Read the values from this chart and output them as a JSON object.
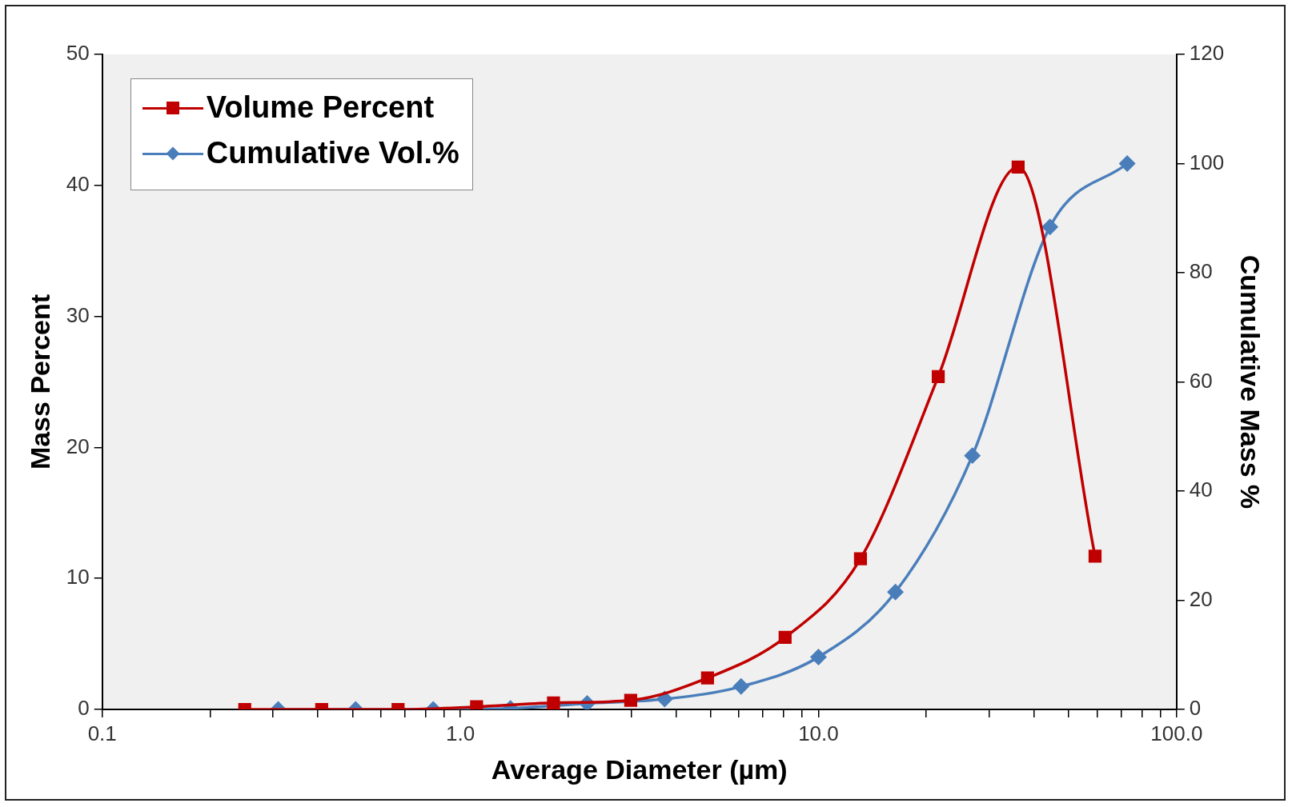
{
  "chart_data": {
    "type": "line",
    "xlabel": "Average Diameter (µm)",
    "ylabel": "Mass Percent",
    "y2label": "Cumulative Mass %",
    "log": "x",
    "xlim": [
      0.1,
      100
    ],
    "xticks": [
      0.1,
      {
        "value": 0.2,
        "label": null
      },
      {
        "value": 0.3,
        "label": null
      },
      {
        "value": 0.4,
        "label": null
      },
      {
        "value": 0.5,
        "label": null
      },
      {
        "value": 0.6,
        "label": null
      },
      {
        "value": 0.7,
        "label": null
      },
      {
        "value": 0.8,
        "label": null
      },
      {
        "value": 0.9,
        "label": null
      },
      {
        "value": 1,
        "label": "1.0"
      },
      {
        "value": 2,
        "label": null
      },
      {
        "value": 3,
        "label": null
      },
      {
        "value": 4,
        "label": null
      },
      {
        "value": 5,
        "label": null
      },
      {
        "value": 6,
        "label": null
      },
      {
        "value": 7,
        "label": null
      },
      {
        "value": 8,
        "label": null
      },
      {
        "value": 9,
        "label": null
      },
      {
        "value": 10,
        "label": "10.0"
      },
      {
        "value": 20,
        "label": null
      },
      {
        "value": 30,
        "label": null
      },
      {
        "value": 40,
        "label": null
      },
      {
        "value": 50,
        "label": null
      },
      {
        "value": 60,
        "label": null
      },
      {
        "value": 70,
        "label": null
      },
      {
        "value": 80,
        "label": null
      },
      {
        "value": 90,
        "label": null
      },
      {
        "value": 100,
        "label": "100.0"
      }
    ],
    "ylim": [
      0,
      50
    ],
    "yticks": [
      0,
      10,
      20,
      30,
      40,
      50
    ],
    "y2lim": [
      0,
      120
    ],
    "y2ticks": [
      0,
      20,
      40,
      60,
      80,
      100,
      120
    ],
    "grid": false,
    "legend": "top left",
    "series": [
      {
        "name": "Volume Percent",
        "color": "#c00000",
        "marker": "square",
        "x": [
          0.25,
          0.41,
          0.67,
          1.11,
          1.82,
          2.99,
          4.9,
          8.07,
          13.1,
          21.6,
          36.1,
          59.2
        ],
        "values": [
          0,
          0,
          0,
          0.2,
          0.5,
          0.7,
          2.4,
          5.5,
          11.5,
          25.4,
          41.4,
          11.7
        ]
      },
      {
        "name": "Cumulative Vol.%",
        "color": "#4a7ebb",
        "marker": "diamond",
        "axis": "y2",
        "x": [
          0.31,
          0.51,
          0.84,
          1.38,
          2.26,
          3.72,
          6.08,
          10.0,
          16.4,
          26.9,
          44.3,
          72.8
        ],
        "values": [
          0,
          0,
          0,
          0.2,
          1.1,
          1.9,
          4.2,
          9.6,
          21.5,
          46.5,
          88.4,
          100
        ]
      }
    ]
  }
}
